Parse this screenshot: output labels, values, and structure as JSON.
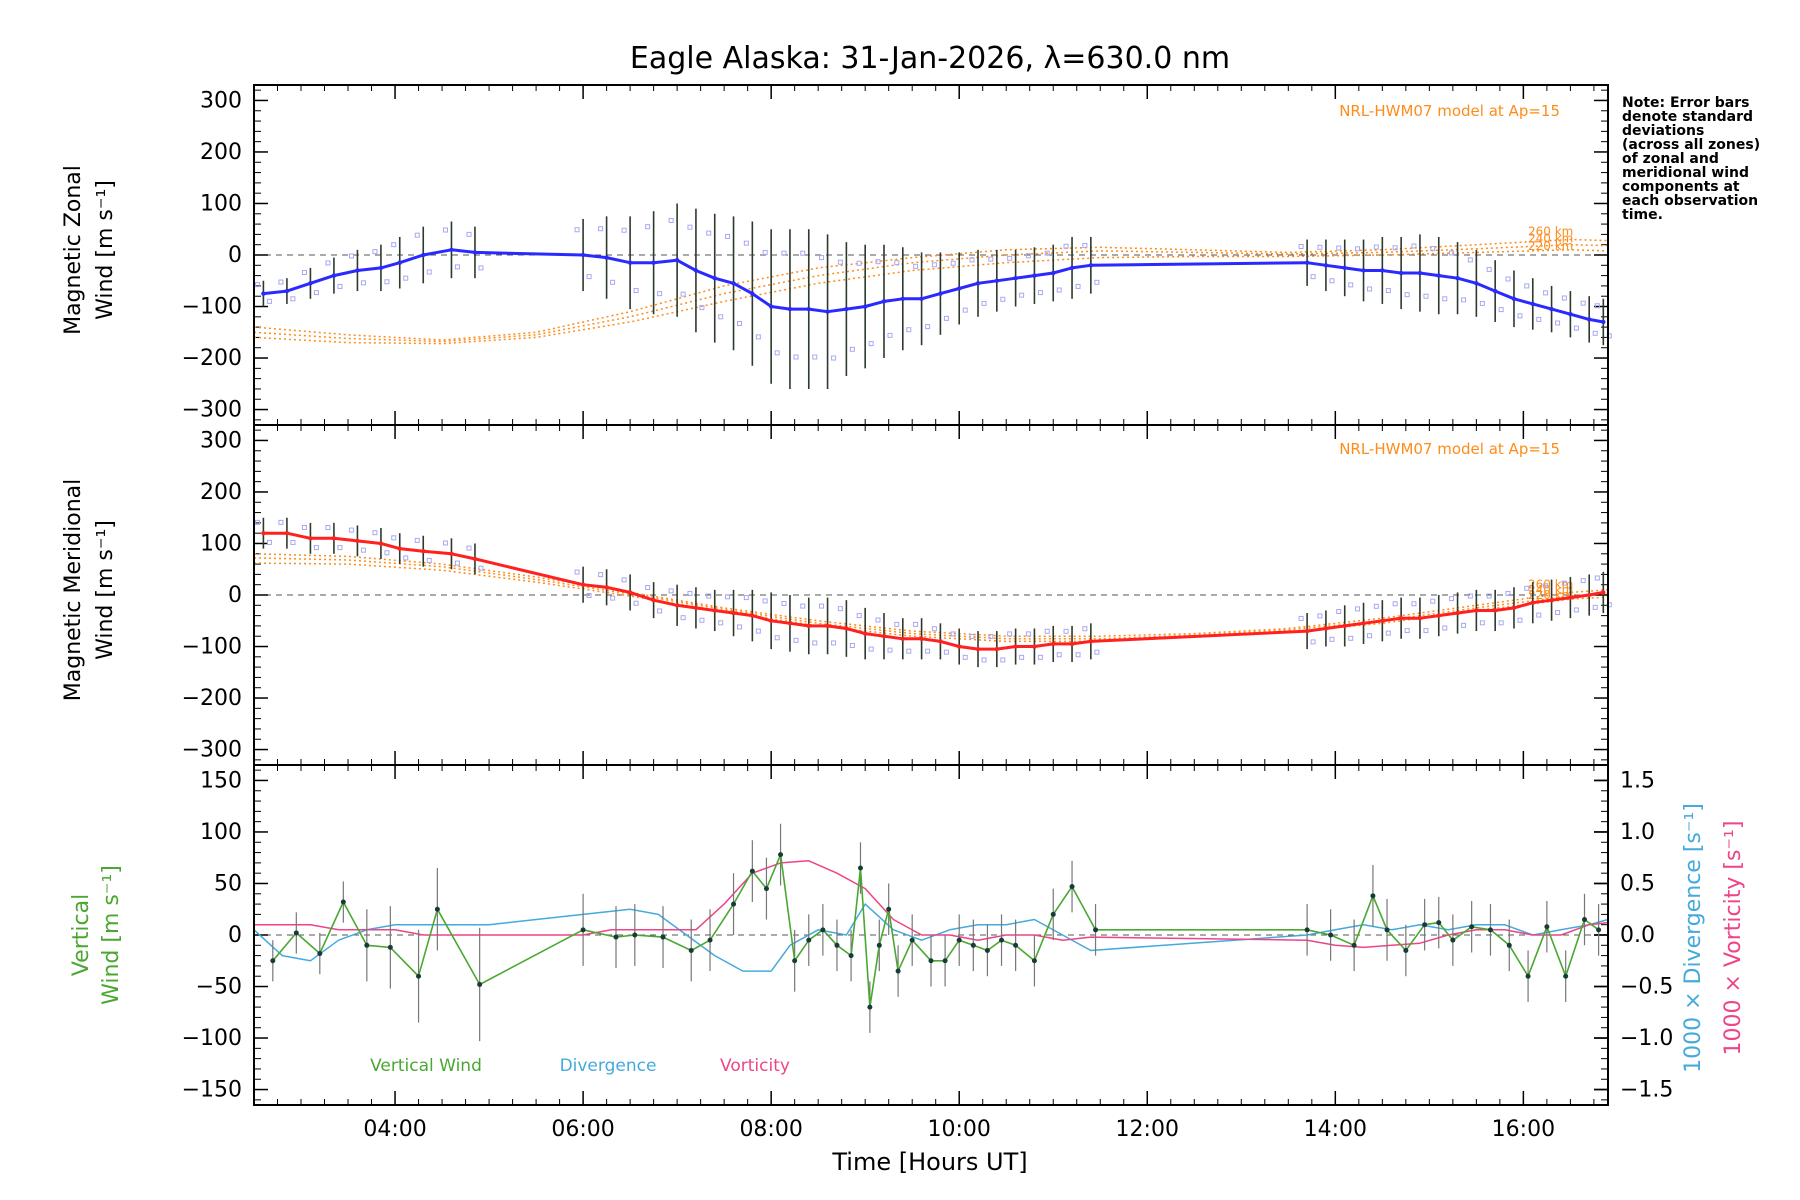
{
  "chart_data": {
    "type": "line",
    "title": "Eagle Alaska: 31-Jan-2026, λ=630.0 nm",
    "xlabel": "Time [Hours UT]",
    "xlim": [
      2.5,
      16.9
    ],
    "x_ticks": [
      4,
      6,
      8,
      10,
      12,
      14,
      16
    ],
    "x_tick_labels": [
      "04:00",
      "06:00",
      "08:00",
      "10:00",
      "12:00",
      "14:00",
      "16:00"
    ],
    "note": [
      "Note: Error bars",
      "denote standard",
      "deviations",
      "(across all zones)",
      "of zonal and",
      "meridional wind",
      "components at",
      "each observation",
      "time."
    ],
    "panels": [
      {
        "id": "zonal",
        "ylabel_line1": "Magnetic Zonal",
        "ylabel_line2": "Wind [m s⁻¹]",
        "ylim": [
          -330,
          330
        ],
        "y_ticks": [
          -300,
          -200,
          -100,
          0,
          100,
          200,
          300
        ],
        "model_label": "NRL-HWM07 model at Ap=15",
        "model_color": "#ff8c1a",
        "model_level_labels": [
          "260 km",
          "240 km",
          "220 km"
        ],
        "series_color": "#2a2aff",
        "x": [
          2.6,
          2.85,
          3.1,
          3.35,
          3.6,
          3.85,
          4.05,
          4.3,
          4.6,
          4.85,
          6.0,
          6.25,
          6.5,
          6.75,
          7.0,
          7.2,
          7.4,
          7.6,
          7.8,
          8.0,
          8.2,
          8.4,
          8.6,
          8.8,
          9.0,
          9.2,
          9.4,
          9.6,
          9.8,
          10.0,
          10.2,
          10.4,
          10.6,
          10.8,
          11.0,
          11.2,
          11.4,
          13.7,
          13.9,
          14.1,
          14.3,
          14.5,
          14.7,
          14.9,
          15.1,
          15.3,
          15.5,
          15.7,
          15.9,
          16.1,
          16.3,
          16.5,
          16.7,
          16.85
        ],
        "values": [
          -75,
          -70,
          -55,
          -40,
          -30,
          -25,
          -15,
          0,
          10,
          5,
          0,
          -5,
          -15,
          -15,
          -10,
          -30,
          -45,
          -55,
          -75,
          -100,
          -105,
          -105,
          -110,
          -105,
          -100,
          -90,
          -85,
          -85,
          -75,
          -65,
          -55,
          -50,
          -45,
          -40,
          -35,
          -25,
          -20,
          -15,
          -20,
          -25,
          -30,
          -30,
          -35,
          -35,
          -40,
          -45,
          -55,
          -70,
          -85,
          -95,
          -105,
          -115,
          -125,
          -130
        ],
        "errors": [
          25,
          25,
          30,
          35,
          40,
          45,
          50,
          55,
          55,
          50,
          70,
          80,
          90,
          100,
          110,
          120,
          125,
          130,
          140,
          150,
          155,
          155,
          150,
          130,
          120,
          110,
          100,
          90,
          80,
          70,
          65,
          60,
          55,
          55,
          55,
          60,
          55,
          45,
          50,
          55,
          60,
          65,
          70,
          75,
          75,
          70,
          65,
          60,
          55,
          50,
          45,
          45,
          45,
          45
        ],
        "model_curves": [
          {
            "name": "260 km",
            "x": [
              2.5,
              3.5,
              4.5,
              5.5,
              6.5,
              7.5,
              8.5,
              9.5,
              10.5,
              11.5,
              12.5,
              13.5,
              14.5,
              15.5,
              16.5,
              16.9
            ],
            "values": [
              -140,
              -155,
              -165,
              -150,
              -110,
              -60,
              -25,
              -5,
              10,
              15,
              10,
              5,
              10,
              20,
              30,
              28
            ]
          },
          {
            "name": "240 km",
            "x": [
              2.5,
              3.5,
              4.5,
              5.5,
              6.5,
              7.5,
              8.5,
              9.5,
              10.5,
              11.5,
              12.5,
              13.5,
              14.5,
              15.5,
              16.5,
              16.9
            ],
            "values": [
              -150,
              -162,
              -168,
              -155,
              -120,
              -75,
              -40,
              -15,
              0,
              8,
              5,
              2,
              5,
              12,
              20,
              18
            ]
          },
          {
            "name": "220 km",
            "x": [
              2.5,
              3.5,
              4.5,
              5.5,
              6.5,
              7.5,
              8.5,
              9.5,
              10.5,
              11.5,
              12.5,
              13.5,
              14.5,
              15.5,
              16.5,
              16.9
            ],
            "values": [
              -160,
              -170,
              -172,
              -160,
              -130,
              -90,
              -55,
              -30,
              -15,
              -5,
              -3,
              -3,
              0,
              5,
              10,
              8
            ]
          }
        ]
      },
      {
        "id": "meridional",
        "ylabel_line1": "Magnetic Meridional",
        "ylabel_line2": "Wind [m s⁻¹]",
        "ylim": [
          -330,
          330
        ],
        "y_ticks": [
          -300,
          -200,
          -100,
          0,
          100,
          200,
          300
        ],
        "model_label": "NRL-HWM07 model at Ap=15",
        "model_color": "#ff8c1a",
        "model_level_labels": [
          "260 km",
          "240 km",
          "220 km"
        ],
        "series_color": "#ff2020",
        "x": [
          2.6,
          2.85,
          3.1,
          3.35,
          3.6,
          3.85,
          4.05,
          4.3,
          4.6,
          4.85,
          6.0,
          6.25,
          6.5,
          6.75,
          7.0,
          7.2,
          7.4,
          7.6,
          7.8,
          8.0,
          8.2,
          8.4,
          8.6,
          8.8,
          9.0,
          9.2,
          9.4,
          9.6,
          9.8,
          10.0,
          10.2,
          10.4,
          10.6,
          10.8,
          11.0,
          11.2,
          11.4,
          13.7,
          13.9,
          14.1,
          14.3,
          14.5,
          14.7,
          14.9,
          15.1,
          15.3,
          15.5,
          15.7,
          15.9,
          16.1,
          16.3,
          16.5,
          16.7,
          16.85
        ],
        "values": [
          120,
          120,
          110,
          110,
          105,
          100,
          90,
          85,
          80,
          70,
          20,
          15,
          5,
          -10,
          -20,
          -25,
          -30,
          -35,
          -40,
          -50,
          -55,
          -60,
          -60,
          -65,
          -75,
          -80,
          -85,
          -85,
          -90,
          -100,
          -105,
          -105,
          -100,
          -100,
          -95,
          -95,
          -90,
          -70,
          -65,
          -60,
          -55,
          -50,
          -45,
          -45,
          -40,
          -35,
          -30,
          -30,
          -25,
          -15,
          -10,
          -5,
          0,
          5
        ],
        "errors": [
          30,
          30,
          30,
          30,
          30,
          30,
          30,
          30,
          30,
          30,
          35,
          35,
          35,
          35,
          40,
          40,
          40,
          45,
          50,
          55,
          55,
          55,
          55,
          55,
          50,
          45,
          40,
          40,
          35,
          35,
          35,
          35,
          35,
          35,
          35,
          35,
          35,
          35,
          35,
          40,
          40,
          40,
          40,
          40,
          40,
          40,
          40,
          40,
          40,
          40,
          40,
          40,
          40,
          40
        ],
        "model_curves": [
          {
            "name": "260 km",
            "x": [
              2.5,
              3.5,
              4.5,
              5.5,
              6.5,
              7.5,
              8.5,
              9.5,
              10.5,
              11.5,
              12.5,
              13.5,
              14.5,
              15.5,
              16.5,
              16.9
            ],
            "values": [
              80,
              75,
              60,
              35,
              5,
              -25,
              -50,
              -70,
              -80,
              -80,
              -75,
              -65,
              -45,
              -20,
              5,
              10
            ]
          },
          {
            "name": "240 km",
            "x": [
              2.5,
              3.5,
              4.5,
              5.5,
              6.5,
              7.5,
              8.5,
              9.5,
              10.5,
              11.5,
              12.5,
              13.5,
              14.5,
              15.5,
              16.5,
              16.9
            ],
            "values": [
              72,
              68,
              55,
              30,
              2,
              -28,
              -55,
              -75,
              -85,
              -85,
              -78,
              -68,
              -50,
              -25,
              -2,
              3
            ]
          },
          {
            "name": "220 km",
            "x": [
              2.5,
              3.5,
              4.5,
              5.5,
              6.5,
              7.5,
              8.5,
              9.5,
              10.5,
              11.5,
              12.5,
              13.5,
              14.5,
              15.5,
              16.5,
              16.9
            ],
            "values": [
              62,
              60,
              48,
              25,
              -2,
              -32,
              -60,
              -80,
              -90,
              -90,
              -82,
              -72,
              -55,
              -30,
              -8,
              -4
            ]
          }
        ]
      },
      {
        "id": "vertical",
        "ylabel_line1": "Vertical",
        "ylabel_line2": "Wind [m s⁻¹]",
        "ylim": [
          -165,
          165
        ],
        "y_ticks": [
          -150,
          -100,
          -50,
          0,
          50,
          100,
          150
        ],
        "y2lim": [
          -1.65,
          1.65
        ],
        "y2_ticks": [
          -1.5,
          -1.0,
          -0.5,
          0.0,
          0.5,
          1.0,
          1.5
        ],
        "y2_tick_labels": [
          "−1.5",
          "−1.0",
          "−0.5",
          "0.0",
          "0.5",
          "1.0",
          "1.5"
        ],
        "y2_label_divergence": "1000 × Divergence [s⁻¹]",
        "y2_label_vorticity": "1000 × Vorticity [s⁻¹]",
        "series": [
          {
            "name": "Vertical Wind",
            "color": "#4aa832",
            "x": [
              2.7,
              2.95,
              3.2,
              3.45,
              3.7,
              3.95,
              4.25,
              4.45,
              4.9,
              6.0,
              6.35,
              6.55,
              6.85,
              7.15,
              7.35,
              7.6,
              7.8,
              7.95,
              8.1,
              8.25,
              8.4,
              8.55,
              8.7,
              8.85,
              8.95,
              9.05,
              9.15,
              9.25,
              9.35,
              9.5,
              9.7,
              9.85,
              10.0,
              10.15,
              10.3,
              10.45,
              10.6,
              10.8,
              11.0,
              11.2,
              11.45,
              13.7,
              13.95,
              14.2,
              14.4,
              14.55,
              14.75,
              14.95,
              15.1,
              15.25,
              15.45,
              15.65,
              15.85,
              16.05,
              16.25,
              16.45,
              16.65,
              16.8
            ],
            "values": [
              -25,
              2,
              -18,
              32,
              -10,
              -12,
              -40,
              25,
              -48,
              5,
              -2,
              0,
              -2,
              -15,
              -5,
              30,
              62,
              45,
              78,
              -25,
              -5,
              5,
              -10,
              -20,
              65,
              -70,
              -10,
              25,
              -35,
              -5,
              -25,
              -25,
              -5,
              -10,
              -15,
              -5,
              -10,
              -25,
              20,
              47,
              5,
              5,
              0,
              -10,
              38,
              5,
              -15,
              10,
              12,
              -5,
              8,
              5,
              -10,
              -40,
              8,
              -40,
              15,
              5
            ],
            "errors": [
              20,
              20,
              20,
              20,
              35,
              40,
              45,
              40,
              55,
              35,
              30,
              30,
              30,
              30,
              30,
              30,
              30,
              30,
              30,
              30,
              25,
              25,
              25,
              25,
              25,
              25,
              25,
              25,
              25,
              25,
              25,
              25,
              25,
              25,
              25,
              25,
              25,
              25,
              25,
              25,
              25,
              25,
              25,
              25,
              30,
              30,
              25,
              25,
              25,
              25,
              25,
              25,
              25,
              25,
              25,
              25,
              25,
              25
            ]
          },
          {
            "name": "Divergence",
            "color": "#44aadd",
            "x": [
              2.5,
              2.8,
              3.1,
              3.4,
              3.7,
              4.0,
              4.3,
              4.6,
              5.0,
              5.5,
              6.0,
              6.5,
              6.8,
              7.1,
              7.4,
              7.7,
              8.0,
              8.2,
              8.5,
              8.8,
              9.0,
              9.3,
              9.6,
              9.9,
              10.2,
              10.5,
              10.8,
              11.1,
              11.4,
              13.7,
              14.0,
              14.3,
              14.6,
              14.9,
              15.2,
              15.5,
              15.8,
              16.1,
              16.4,
              16.7,
              16.9
            ],
            "values": [
              0.05,
              -0.2,
              -0.25,
              -0.05,
              0.05,
              0.1,
              0.1,
              0.1,
              0.1,
              0.15,
              0.2,
              0.25,
              0.2,
              0.0,
              -0.2,
              -0.35,
              -0.35,
              -0.1,
              0.05,
              0.0,
              0.3,
              0.05,
              -0.05,
              0.05,
              0.1,
              0.1,
              0.15,
              0.0,
              -0.15,
              0.0,
              0.05,
              0.1,
              0.05,
              0.1,
              0.05,
              0.1,
              0.1,
              0.0,
              0.05,
              0.1,
              0.15
            ]
          },
          {
            "name": "Vorticity",
            "color": "#ee4488",
            "x": [
              2.5,
              2.8,
              3.1,
              3.4,
              3.7,
              4.0,
              4.3,
              4.6,
              5.0,
              5.5,
              6.0,
              6.3,
              6.6,
              6.9,
              7.2,
              7.5,
              7.8,
              8.1,
              8.4,
              8.7,
              9.0,
              9.3,
              9.6,
              9.9,
              10.2,
              10.5,
              10.8,
              11.1,
              11.4,
              13.7,
              14.0,
              14.3,
              14.6,
              14.9,
              15.2,
              15.5,
              15.8,
              16.1,
              16.4,
              16.7,
              16.9
            ],
            "values": [
              0.1,
              0.1,
              0.1,
              0.05,
              0.05,
              0.05,
              0.0,
              0.0,
              0.0,
              0.0,
              0.0,
              0.05,
              0.05,
              0.05,
              0.05,
              0.3,
              0.6,
              0.7,
              0.72,
              0.6,
              0.45,
              0.15,
              0.0,
              0.0,
              -0.05,
              0.0,
              0.0,
              -0.05,
              -0.02,
              -0.05,
              -0.1,
              -0.12,
              -0.1,
              -0.08,
              0.0,
              0.05,
              0.05,
              0.0,
              0.0,
              0.1,
              0.12
            ]
          }
        ],
        "legend": [
          "Vertical Wind",
          "Divergence",
          "Vorticity"
        ]
      }
    ]
  }
}
